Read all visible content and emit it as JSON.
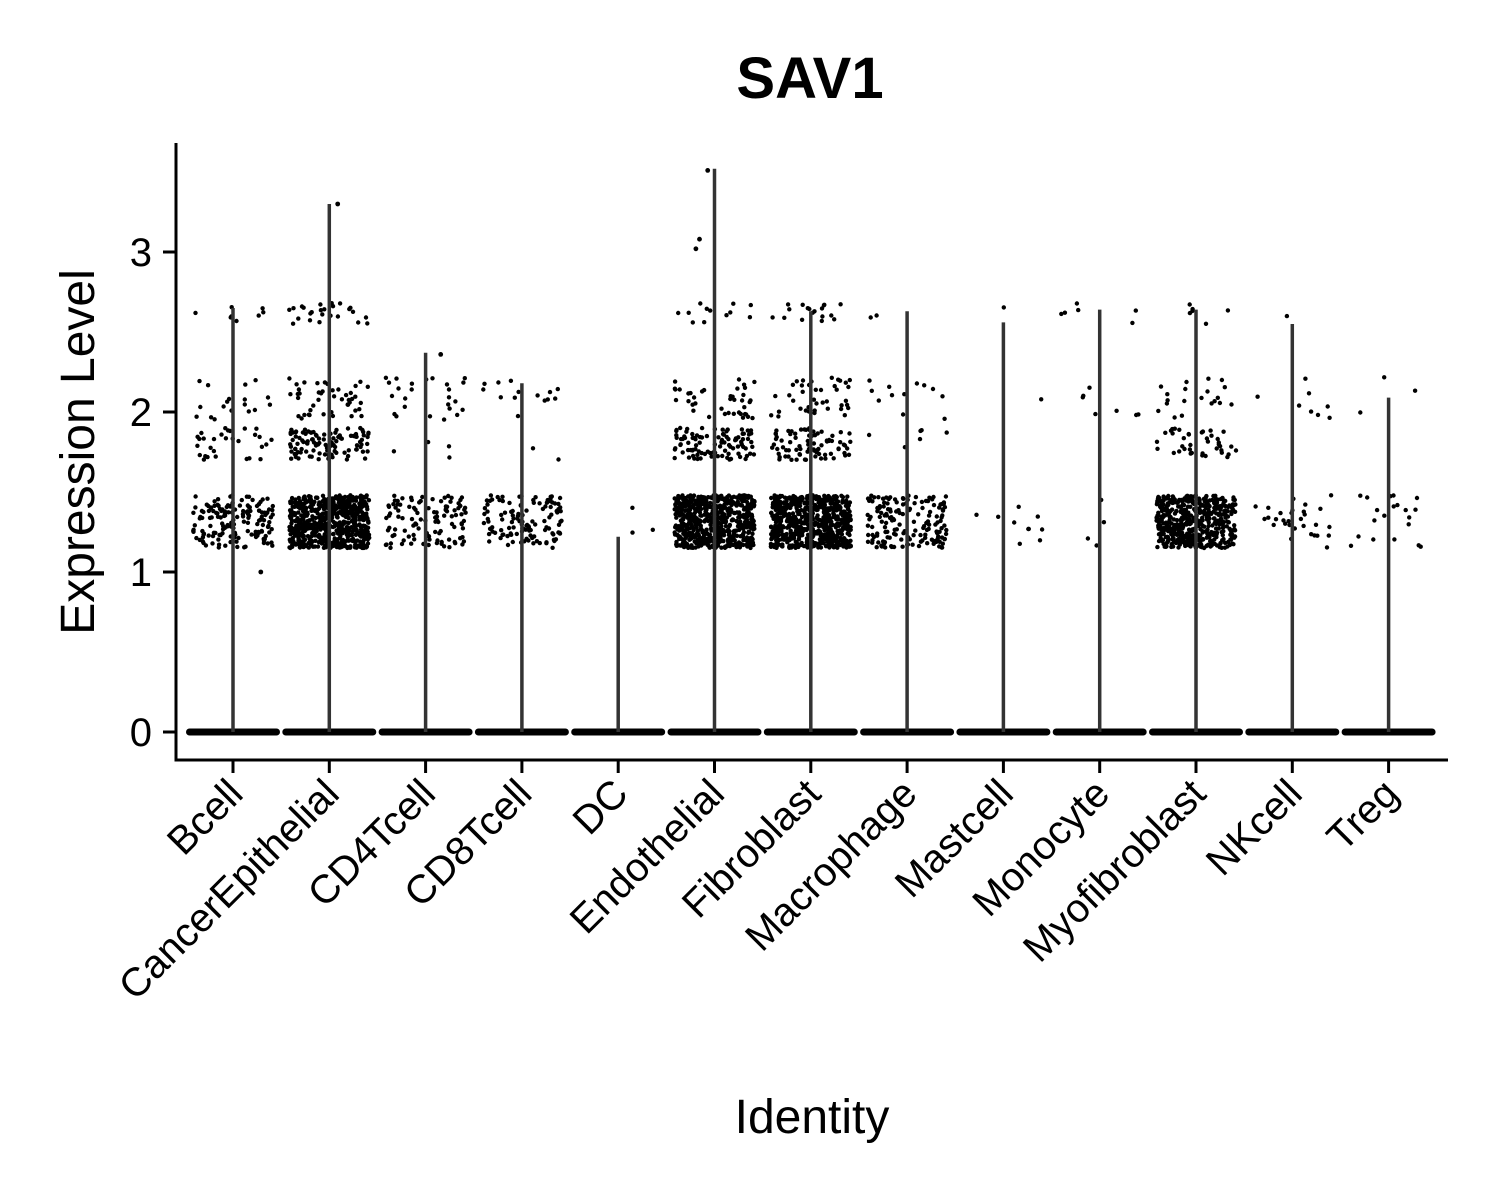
{
  "chart_data": {
    "type": "violin",
    "title": "SAV1",
    "xlabel": "Identity",
    "ylabel": "Expression Level",
    "ylim": [
      -0.15,
      3.7
    ],
    "yticks": [
      0,
      1,
      2,
      3
    ],
    "categories": [
      "Bcell",
      "CancerEpithelial",
      "CD4Tcell",
      "CD8Tcell",
      "DC",
      "Endothelial",
      "Fibroblast",
      "Macrophage",
      "Mastcell",
      "Monocyte",
      "Myofibroblast",
      "NKcell",
      "Treg"
    ],
    "max_values": [
      2.65,
      3.3,
      2.37,
      2.18,
      1.22,
      3.52,
      2.63,
      2.63,
      2.56,
      2.64,
      2.64,
      2.55,
      2.09
    ],
    "point_density": [
      {
        "band_1_3": 160,
        "band_1_8": 30,
        "band_2_1": 18,
        "band_2_6": 8,
        "outliers": [
          1.0
        ]
      },
      {
        "band_1_3": 650,
        "band_1_8": 110,
        "band_2_1": 45,
        "band_2_6": 25,
        "outliers": [
          3.3
        ]
      },
      {
        "band_1_3": 110,
        "band_1_8": 4,
        "band_2_1": 25,
        "band_2_6": 0,
        "outliers": [
          2.36
        ]
      },
      {
        "band_1_3": 120,
        "band_1_8": 2,
        "band_2_1": 14,
        "band_2_6": 0,
        "outliers": []
      },
      {
        "band_1_3": 3,
        "band_1_8": 0,
        "band_2_1": 0,
        "band_2_6": 0,
        "outliers": []
      },
      {
        "band_1_3": 650,
        "band_1_8": 100,
        "band_2_1": 40,
        "band_2_6": 12,
        "outliers": [
          3.08,
          3.02,
          3.51
        ]
      },
      {
        "band_1_3": 650,
        "band_1_8": 80,
        "band_2_1": 40,
        "band_2_6": 18,
        "outliers": []
      },
      {
        "band_1_3": 160,
        "band_1_8": 6,
        "band_2_1": 12,
        "band_2_6": 2,
        "outliers": []
      },
      {
        "band_1_3": 10,
        "band_1_8": 0,
        "band_2_1": 1,
        "band_2_6": 1,
        "outliers": []
      },
      {
        "band_1_3": 4,
        "band_1_8": 0,
        "band_2_1": 7,
        "band_2_6": 6,
        "outliers": []
      },
      {
        "band_1_3": 500,
        "band_1_8": 40,
        "band_2_1": 20,
        "band_2_6": 6,
        "outliers": []
      },
      {
        "band_1_3": 30,
        "band_1_8": 0,
        "band_2_1": 8,
        "band_2_6": 1,
        "outliers": []
      },
      {
        "band_1_3": 20,
        "band_1_8": 0,
        "band_2_1": 3,
        "band_2_6": 0,
        "outliers": []
      }
    ],
    "zero_value": 0,
    "grid": false,
    "legend": "none",
    "point_color": "#000000",
    "violin_color": "#333333"
  }
}
